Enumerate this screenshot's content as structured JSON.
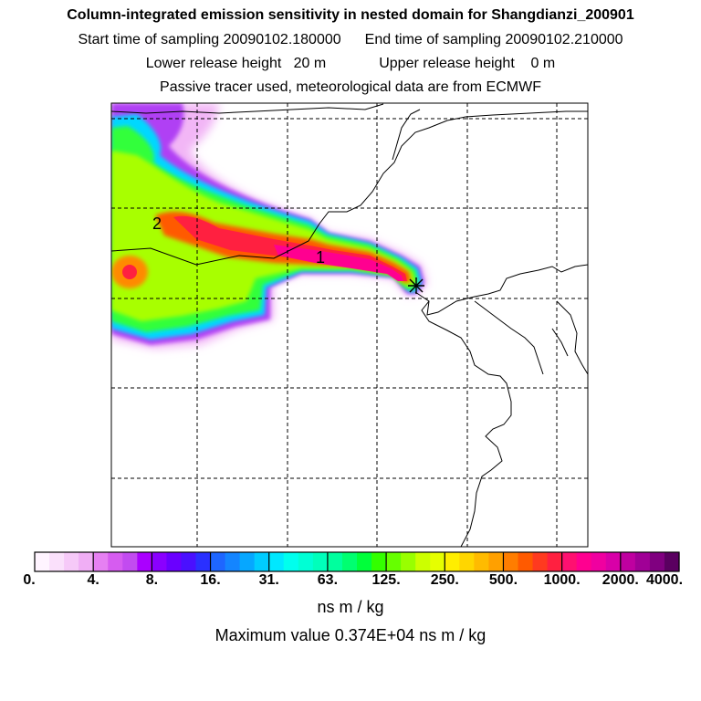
{
  "header": {
    "title": "Column-integrated emission sensitivity in nested domain for Shangdianzi_200901",
    "start_sampling": "Start time of sampling 20090102.180000",
    "end_sampling": "End time of sampling 20090102.210000",
    "lower_release": "Lower release height   20 m",
    "upper_release": "Upper release height    0 m",
    "tracer_info": "Passive tracer used, meteorological data are from ECMWF"
  },
  "map": {
    "plume_labels": [
      "1",
      "2"
    ],
    "receptor_marker": "star-receptor-icon"
  },
  "colorbar": {
    "tick_labels": [
      "0.",
      "4.",
      "8.",
      "16.",
      "31.",
      "63.",
      "125.",
      "250.",
      "500.",
      "1000.",
      "2000.",
      "4000."
    ],
    "units": "ns m / kg",
    "colors": [
      "#fff4ff",
      "#fae0fb",
      "#f6c9f8",
      "#f0aef5",
      "#e680f2",
      "#d65cf0",
      "#c24bf0",
      "#aa00ff",
      "#8a00ff",
      "#6a00ff",
      "#4a10ff",
      "#2a30ff",
      "#1e66ff",
      "#1485ff",
      "#06a7ff",
      "#00ccff",
      "#00e8ff",
      "#00ffee",
      "#00ffd5",
      "#00ffbb",
      "#00ff9e",
      "#00ff70",
      "#00ff3a",
      "#33ff00",
      "#66ff00",
      "#99ff00",
      "#ccff00",
      "#e6ff00",
      "#ffee00",
      "#ffd600",
      "#ffbb00",
      "#ffa000",
      "#ff7d00",
      "#ff5a00",
      "#ff3a1f",
      "#ff2040",
      "#ff1070",
      "#ff0090",
      "#f000a0",
      "#d800a8",
      "#bf00a0",
      "#a00096",
      "#800080",
      "#5a0060"
    ]
  },
  "summary": {
    "maximum": "Maximum value  0.374E+04 ns m / kg"
  }
}
